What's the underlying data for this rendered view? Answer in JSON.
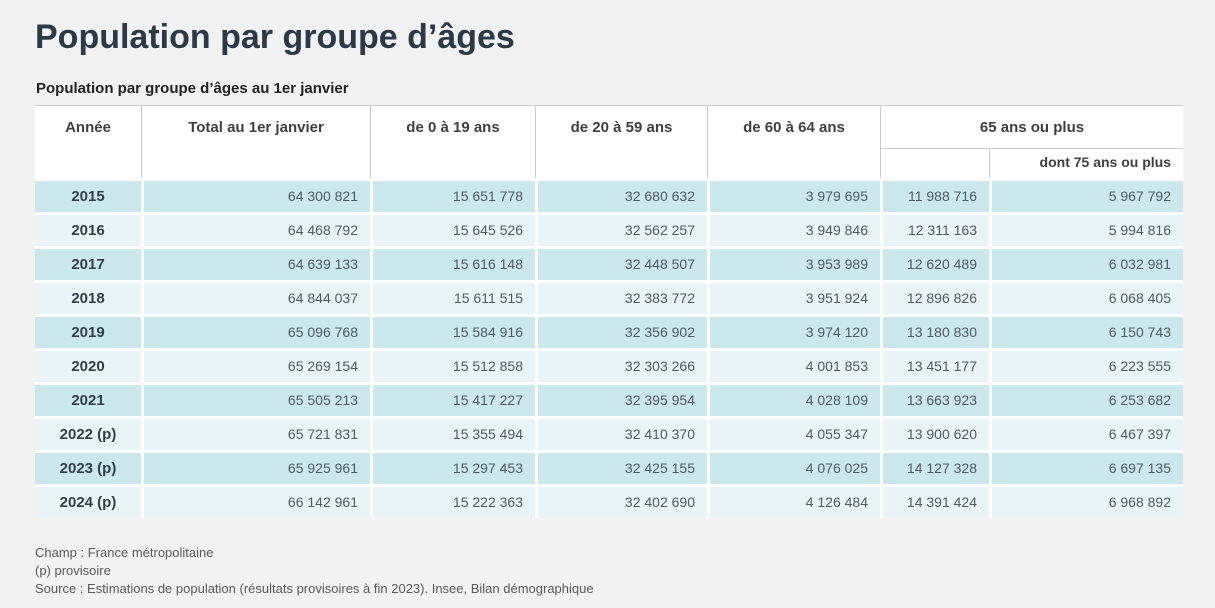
{
  "page": {
    "title": "Population par groupe d’âges",
    "subtitle": "Population par groupe d’âges au 1er janvier"
  },
  "table": {
    "columns": [
      "Année",
      "Total au 1er janvier",
      "de 0 à 19 ans",
      "de 20 à 59 ans",
      "de 60 à 64 ans",
      "65 ans ou plus"
    ],
    "subcolumn": "dont 75 ans ou plus",
    "rows": [
      {
        "year": "2015",
        "values": [
          "64 300 821",
          "15 651 778",
          "32 680 632",
          "3 979 695",
          "11 988 716",
          "5 967 792"
        ]
      },
      {
        "year": "2016",
        "values": [
          "64 468 792",
          "15 645 526",
          "32 562 257",
          "3 949 846",
          "12 311 163",
          "5 994 816"
        ]
      },
      {
        "year": "2017",
        "values": [
          "64 639 133",
          "15 616 148",
          "32 448 507",
          "3 953 989",
          "12 620 489",
          "6 032 981"
        ]
      },
      {
        "year": "2018",
        "values": [
          "64 844 037",
          "15 611 515",
          "32 383 772",
          "3 951 924",
          "12 896 826",
          "6 068 405"
        ]
      },
      {
        "year": "2019",
        "values": [
          "65 096 768",
          "15 584 916",
          "32 356 902",
          "3 974 120",
          "13 180 830",
          "6 150 743"
        ]
      },
      {
        "year": "2020",
        "values": [
          "65 269 154",
          "15 512 858",
          "32 303 266",
          "4 001 853",
          "13 451 177",
          "6 223 555"
        ]
      },
      {
        "year": "2021",
        "values": [
          "65 505 213",
          "15 417 227",
          "32 395 954",
          "4 028 109",
          "13 663 923",
          "6 253 682"
        ]
      },
      {
        "year": "2022 (p)",
        "values": [
          "65 721 831",
          "15 355 494",
          "32 410 370",
          "4 055 347",
          "13 900 620",
          "6 467 397"
        ]
      },
      {
        "year": "2023 (p)",
        "values": [
          "65 925 961",
          "15 297 453",
          "32 425 155",
          "4 076 025",
          "14 127 328",
          "6 697 135"
        ]
      },
      {
        "year": "2024 (p)",
        "values": [
          "66 142 961",
          "15 222 363",
          "32 402 690",
          "4 126 484",
          "14 391 424",
          "6 968 892"
        ]
      }
    ]
  },
  "footnotes": [
    "Champ : France métropolitaine",
    "(p) provisoire",
    "Source : Estimations de population (résultats provisoires à fin 2023). Insee, Bilan démographique"
  ],
  "colors": {
    "page_background": "#f2f2f2",
    "title_text": "#2b3a48",
    "row_odd": "#cbe8ec",
    "row_even": "#e8f4f6",
    "header_border": "#cccccc",
    "cell_text": "#4e5b63"
  },
  "chart_data": {
    "type": "table",
    "title": "Population par groupe d’âges au 1er janvier",
    "columns": [
      "Année",
      "Total au 1er janvier",
      "de 0 à 19 ans",
      "de 20 à 59 ans",
      "de 60 à 64 ans",
      "65 ans ou plus",
      "dont 75 ans ou plus"
    ],
    "rows": [
      [
        "2015",
        64300821,
        15651778,
        32680632,
        3979695,
        11988716,
        5967792
      ],
      [
        "2016",
        64468792,
        15645526,
        32562257,
        3949846,
        12311163,
        5994816
      ],
      [
        "2017",
        64639133,
        15616148,
        32448507,
        3953989,
        12620489,
        6032981
      ],
      [
        "2018",
        64844037,
        15611515,
        32383772,
        3951924,
        12896826,
        6068405
      ],
      [
        "2019",
        65096768,
        15584916,
        32356902,
        3974120,
        13180830,
        6150743
      ],
      [
        "2020",
        65269154,
        15512858,
        32303266,
        4001853,
        13451177,
        6223555
      ],
      [
        "2021",
        65505213,
        15417227,
        32395954,
        4028109,
        13663923,
        6253682
      ],
      [
        "2022 (p)",
        65721831,
        15355494,
        32410370,
        4055347,
        13900620,
        6467397
      ],
      [
        "2023 (p)",
        65925961,
        15297453,
        32425155,
        4076025,
        14127328,
        6697135
      ],
      [
        "2024 (p)",
        66142961,
        15222363,
        32402690,
        4126484,
        14391424,
        6968892
      ]
    ],
    "notes": [
      "Champ : France métropolitaine",
      "(p) provisoire",
      "Source : Estimations de population (résultats provisoires à fin 2023). Insee, Bilan démographique"
    ]
  }
}
